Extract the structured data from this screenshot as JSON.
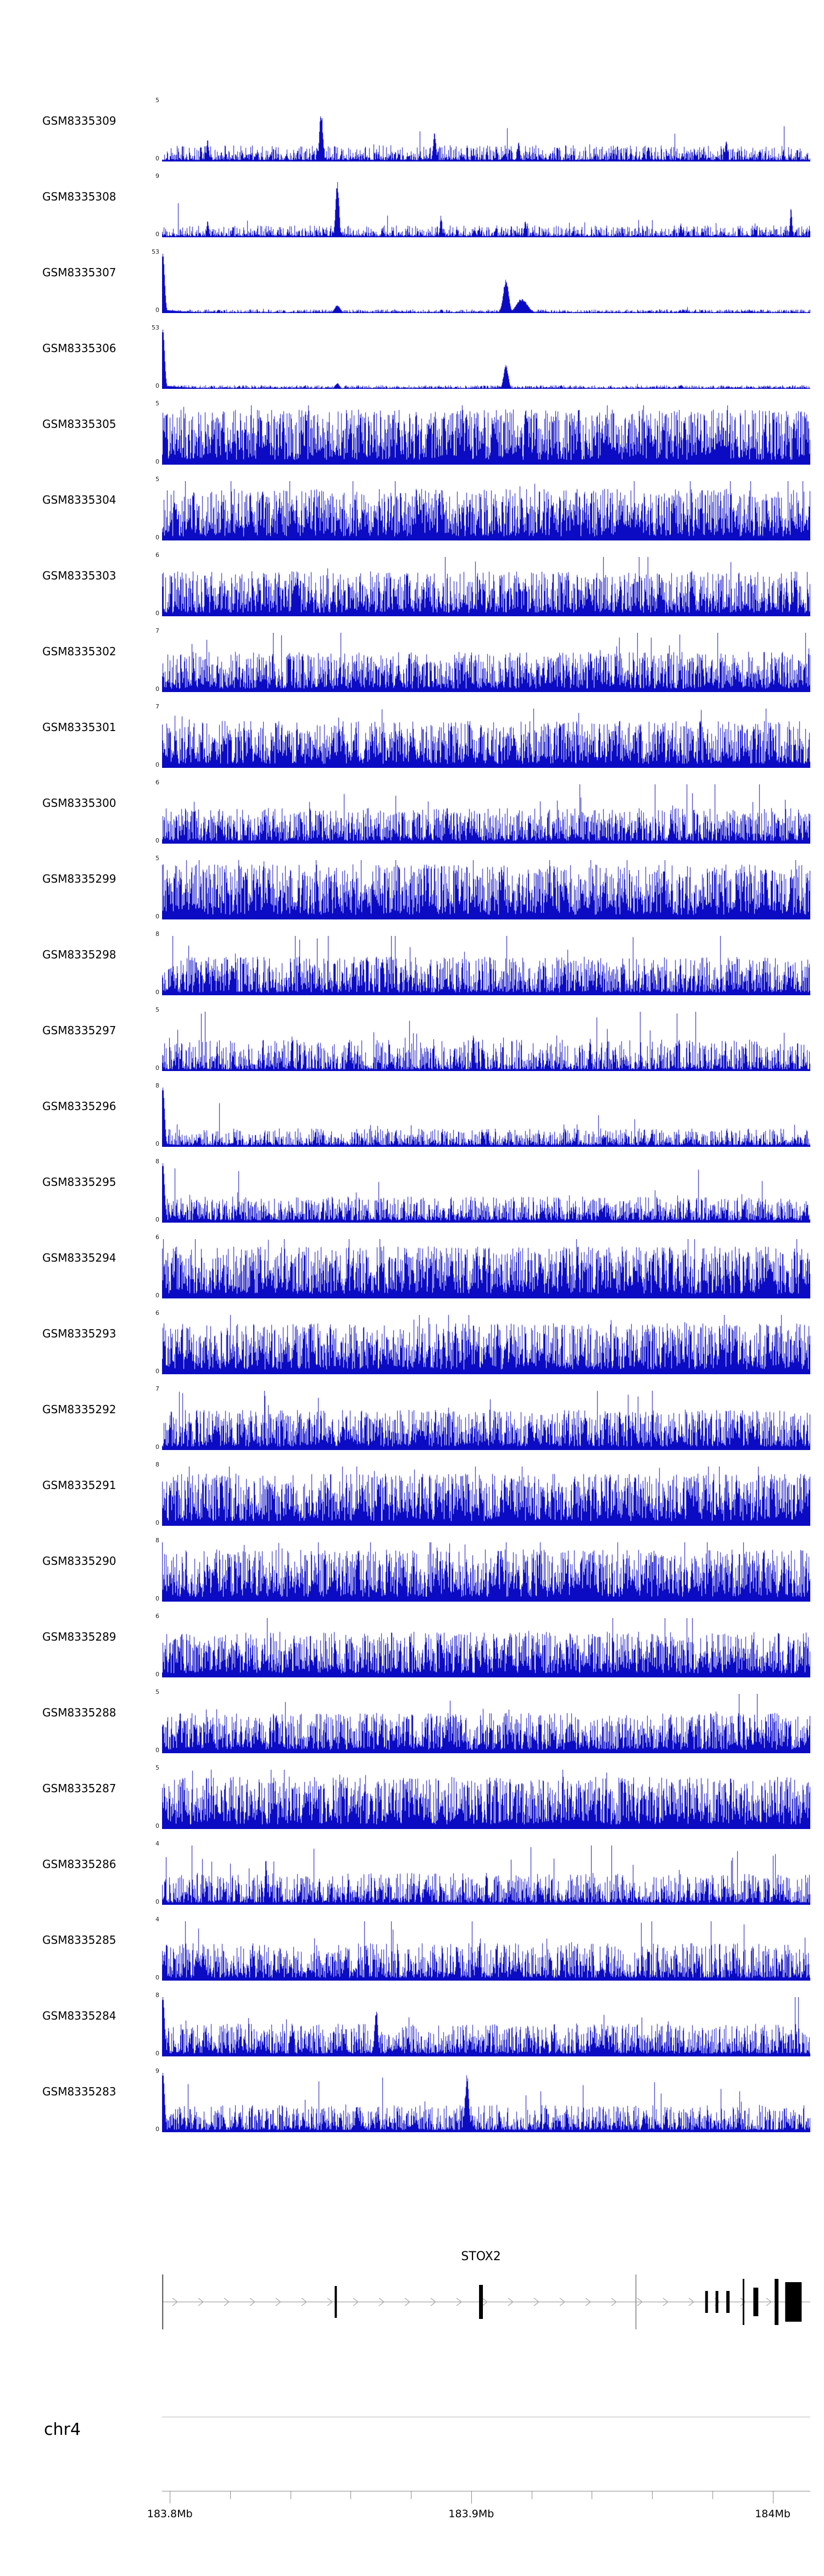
{
  "colors": {
    "signal": "#0b0bc4",
    "axis": "#8c8c8c",
    "exon": "#000000",
    "chevron": "#b5b5b5",
    "separator": "#b8b8b8",
    "text": "#000000"
  },
  "chr_label": "chr4",
  "gene": {
    "name": "STOX2",
    "label_f": 0.492,
    "lines": [
      {
        "f": 0.001,
        "w": 2,
        "h": 100,
        "color": "#555555"
      },
      {
        "f": 0.731,
        "w": 2,
        "h": 100,
        "color": "#999999"
      }
    ],
    "exons": [
      {
        "f": 0.268,
        "w": 4,
        "h": 58
      },
      {
        "f": 0.492,
        "w": 7,
        "h": 62
      },
      {
        "f": 0.84,
        "w": 5,
        "h": 40
      },
      {
        "f": 0.856,
        "w": 5,
        "h": 40
      },
      {
        "f": 0.873,
        "w": 6,
        "h": 40
      },
      {
        "f": 0.897,
        "w": 3,
        "h": 84
      },
      {
        "f": 0.916,
        "w": 9,
        "h": 52
      },
      {
        "f": 0.948,
        "w": 7,
        "h": 84
      },
      {
        "f": 0.974,
        "w": 30,
        "h": 72
      }
    ]
  },
  "axis": {
    "ticks": [
      {
        "f": 0.012,
        "label": "183.8Mb"
      },
      {
        "f": 0.105
      },
      {
        "f": 0.198
      },
      {
        "f": 0.291
      },
      {
        "f": 0.384
      },
      {
        "f": 0.477,
        "label": "183.9Mb"
      },
      {
        "f": 0.57
      },
      {
        "f": 0.663
      },
      {
        "f": 0.756
      },
      {
        "f": 0.849
      },
      {
        "f": 0.942,
        "label": "184Mb"
      }
    ]
  },
  "chart_data": {
    "type": "area",
    "x_unit": "Mb",
    "chromosome": "chr4",
    "x_range": [
      183.8,
      184.0
    ],
    "gene": "STOX2",
    "tracks": [
      {
        "name": "GSM8335309",
        "ymax": "5",
        "seed": 101,
        "base": 0.025,
        "noise": 0.25,
        "pow": 2.2,
        "spike_prob": 0.025,
        "spike_mul": 2.2,
        "edge": 0,
        "peaks": [
          [
            0.245,
            0.9,
            3
          ],
          [
            0.07,
            0.38,
            2
          ],
          [
            0.42,
            0.55,
            2.5
          ],
          [
            0.55,
            0.35,
            2
          ],
          [
            0.75,
            0.3,
            2
          ],
          [
            0.87,
            0.4,
            2
          ]
        ]
      },
      {
        "name": "GSM8335308",
        "ymax": "9",
        "seed": 102,
        "base": 0.02,
        "noise": 0.18,
        "pow": 2.4,
        "spike_prob": 0.02,
        "spike_mul": 2.4,
        "edge": 0,
        "peaks": [
          [
            0.27,
            1.0,
            3
          ],
          [
            0.43,
            0.38,
            2
          ],
          [
            0.07,
            0.3,
            2
          ],
          [
            0.56,
            0.28,
            2
          ],
          [
            0.8,
            0.25,
            2
          ],
          [
            0.97,
            0.5,
            2
          ]
        ]
      },
      {
        "name": "GSM8335307",
        "ymax": "53",
        "seed": 103,
        "base": 0.012,
        "noise": 0.05,
        "pow": 2.0,
        "spike_prob": 0.006,
        "spike_mul": 2.0,
        "edge": 1,
        "peaks": [
          [
            0.27,
            0.14,
            5
          ],
          [
            0.53,
            0.58,
            5
          ],
          [
            0.555,
            0.25,
            10
          ]
        ]
      },
      {
        "name": "GSM8335306",
        "ymax": "53",
        "seed": 104,
        "base": 0.012,
        "noise": 0.05,
        "pow": 2.0,
        "spike_prob": 0.006,
        "spike_mul": 2.0,
        "edge": 1,
        "peaks": [
          [
            0.53,
            0.45,
            4
          ],
          [
            0.27,
            0.1,
            4
          ],
          [
            0.8,
            0.07,
            3
          ]
        ]
      },
      {
        "name": "GSM8335305",
        "ymax": "5",
        "seed": 105,
        "base": 0.08,
        "noise": 0.85,
        "pow": 1.1,
        "spike_prob": 0.03,
        "spike_mul": 1.5,
        "edge": 0,
        "peaks": []
      },
      {
        "name": "GSM8335304",
        "ymax": "5",
        "seed": 106,
        "base": 0.07,
        "noise": 0.8,
        "pow": 1.15,
        "spike_prob": 0.03,
        "spike_mul": 1.5,
        "edge": 0,
        "peaks": []
      },
      {
        "name": "GSM8335303",
        "ymax": "6",
        "seed": 107,
        "base": 0.06,
        "noise": 0.7,
        "pow": 1.3,
        "spike_prob": 0.03,
        "spike_mul": 1.5,
        "edge": 0,
        "peaks": []
      },
      {
        "name": "GSM8335302",
        "ymax": "7",
        "seed": 108,
        "base": 0.06,
        "noise": 0.62,
        "pow": 1.3,
        "spike_prob": 0.03,
        "spike_mul": 1.6,
        "edge": 0,
        "peaks": []
      },
      {
        "name": "GSM8335301",
        "ymax": "7",
        "seed": 109,
        "base": 0.07,
        "noise": 0.72,
        "pow": 1.2,
        "spike_prob": 0.03,
        "spike_mul": 1.5,
        "edge": 0,
        "peaks": []
      },
      {
        "name": "GSM8335300",
        "ymax": "6",
        "seed": 110,
        "base": 0.05,
        "noise": 0.55,
        "pow": 1.5,
        "spike_prob": 0.04,
        "spike_mul": 1.8,
        "edge": 0,
        "peaks": []
      },
      {
        "name": "GSM8335299",
        "ymax": "5",
        "seed": 111,
        "base": 0.08,
        "noise": 0.85,
        "pow": 1.1,
        "spike_prob": 0.03,
        "spike_mul": 1.4,
        "edge": 0,
        "peaks": []
      },
      {
        "name": "GSM8335298",
        "ymax": "8",
        "seed": 112,
        "base": 0.05,
        "noise": 0.6,
        "pow": 1.5,
        "spike_prob": 0.05,
        "spike_mul": 1.9,
        "edge": 0,
        "peaks": []
      },
      {
        "name": "GSM8335297",
        "ymax": "5",
        "seed": 113,
        "base": 0.03,
        "noise": 0.5,
        "pow": 2.2,
        "spike_prob": 0.04,
        "spike_mul": 2.0,
        "edge": 0,
        "peaks": [
          [
            0.2,
            0.6,
            2
          ],
          [
            0.48,
            0.7,
            2
          ],
          [
            0.66,
            0.55,
            2
          ],
          [
            0.9,
            0.5,
            2
          ]
        ]
      },
      {
        "name": "GSM8335296",
        "ymax": "8",
        "seed": 114,
        "base": 0.03,
        "noise": 0.28,
        "pow": 2.0,
        "spike_prob": 0.03,
        "spike_mul": 2.0,
        "edge": 1,
        "peaks": []
      },
      {
        "name": "GSM8335295",
        "ymax": "8",
        "seed": 115,
        "base": 0.04,
        "noise": 0.4,
        "pow": 1.8,
        "spike_prob": 0.03,
        "spike_mul": 1.8,
        "edge": 1,
        "peaks": []
      },
      {
        "name": "GSM8335294",
        "ymax": "6",
        "seed": 116,
        "base": 0.08,
        "noise": 0.8,
        "pow": 1.15,
        "spike_prob": 0.03,
        "spike_mul": 1.4,
        "edge": 0,
        "peaks": []
      },
      {
        "name": "GSM8335293",
        "ymax": "6",
        "seed": 117,
        "base": 0.08,
        "noise": 0.78,
        "pow": 1.15,
        "spike_prob": 0.03,
        "spike_mul": 1.4,
        "edge": 0,
        "peaks": []
      },
      {
        "name": "GSM8335292",
        "ymax": "7",
        "seed": 118,
        "base": 0.06,
        "noise": 0.62,
        "pow": 1.35,
        "spike_prob": 0.03,
        "spike_mul": 1.6,
        "edge": 0,
        "peaks": []
      },
      {
        "name": "GSM8335291",
        "ymax": "8",
        "seed": 119,
        "base": 0.08,
        "noise": 0.8,
        "pow": 1.1,
        "spike_prob": 0.03,
        "spike_mul": 1.4,
        "edge": 0,
        "peaks": []
      },
      {
        "name": "GSM8335290",
        "ymax": "8",
        "seed": 120,
        "base": 0.08,
        "noise": 0.8,
        "pow": 1.1,
        "spike_prob": 0.03,
        "spike_mul": 1.4,
        "edge": 0,
        "peaks": []
      },
      {
        "name": "GSM8335289",
        "ymax": "6",
        "seed": 121,
        "base": 0.07,
        "noise": 0.7,
        "pow": 1.25,
        "spike_prob": 0.03,
        "spike_mul": 1.5,
        "edge": 0,
        "peaks": []
      },
      {
        "name": "GSM8335288",
        "ymax": "5",
        "seed": 122,
        "base": 0.06,
        "noise": 0.62,
        "pow": 1.35,
        "spike_prob": 0.03,
        "spike_mul": 1.5,
        "edge": 0,
        "peaks": []
      },
      {
        "name": "GSM8335287",
        "ymax": "5",
        "seed": 123,
        "base": 0.08,
        "noise": 0.8,
        "pow": 1.1,
        "spike_prob": 0.03,
        "spike_mul": 1.4,
        "edge": 0,
        "peaks": []
      },
      {
        "name": "GSM8335286",
        "ymax": "4",
        "seed": 124,
        "base": 0.04,
        "noise": 0.5,
        "pow": 1.9,
        "spike_prob": 0.04,
        "spike_mul": 1.9,
        "edge": 0,
        "peaks": [
          [
            0.16,
            0.8,
            2
          ],
          [
            0.5,
            0.55,
            2
          ],
          [
            0.84,
            0.5,
            2
          ]
        ]
      },
      {
        "name": "GSM8335285",
        "ymax": "4",
        "seed": 125,
        "base": 0.05,
        "noise": 0.58,
        "pow": 1.5,
        "spike_prob": 0.035,
        "spike_mul": 1.7,
        "edge": 0,
        "peaks": []
      },
      {
        "name": "GSM8335284",
        "ymax": "8",
        "seed": 126,
        "base": 0.05,
        "noise": 0.5,
        "pow": 1.6,
        "spike_prob": 0.035,
        "spike_mul": 1.8,
        "edge": 1,
        "peaks": [
          [
            0.33,
            0.85,
            3
          ],
          [
            0.12,
            0.4,
            2
          ]
        ]
      },
      {
        "name": "GSM8335283",
        "ymax": "9",
        "seed": 127,
        "base": 0.04,
        "noise": 0.42,
        "pow": 1.9,
        "spike_prob": 0.03,
        "spike_mul": 1.9,
        "edge": 1,
        "peaks": [
          [
            0.47,
            1.0,
            3.5
          ],
          [
            0.3,
            0.5,
            2.5
          ],
          [
            0.12,
            0.35,
            2
          ]
        ]
      }
    ]
  }
}
